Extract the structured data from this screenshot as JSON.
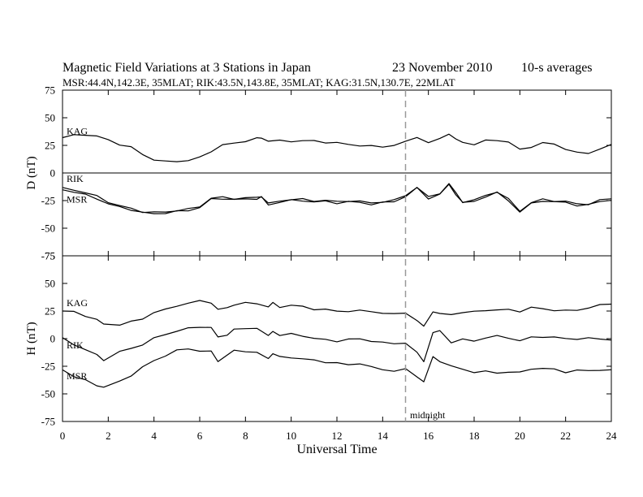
{
  "chart_data": {
    "type": "line",
    "title": "Magnetic Field Variations at 3 Stations in Japan",
    "date": "23 November 2010",
    "averaging": "10-s averages",
    "subtitle": "MSR:44.4N,142.3E, 35MLAT;  RIK:43.5N,143.8E, 35MLAT;  KAG:31.5N,130.7E, 22MLAT",
    "xlabel": "Universal Time",
    "xlim": [
      0,
      24
    ],
    "xticks": [
      "0",
      "2",
      "4",
      "6",
      "8",
      "10",
      "12",
      "14",
      "16",
      "18",
      "20",
      "22",
      "24"
    ],
    "annotation": {
      "text": "midnight",
      "x": 15
    },
    "grid": false,
    "panels": [
      {
        "ylabel": "D (nT)",
        "ylim": [
          -75,
          75
        ],
        "yticks": [
          "75",
          "50",
          "25",
          "0",
          "-25",
          "-50",
          "-75"
        ],
        "zero_line": true,
        "x": [
          0,
          0.5,
          1,
          1.5,
          2,
          2.5,
          3,
          3.5,
          4,
          4.5,
          5,
          5.5,
          6,
          6.5,
          7,
          7.5,
          8,
          8.5,
          8.7,
          9,
          9.5,
          10,
          10.5,
          11,
          11.5,
          12,
          12.5,
          13,
          13.5,
          14,
          14.5,
          15,
          15.5,
          16,
          16.5,
          16.9,
          17.2,
          17.5,
          18,
          18.5,
          19,
          19.5,
          20,
          20.5,
          21,
          21.5,
          22,
          22.5,
          23,
          23.5,
          24
        ],
        "series": [
          {
            "name": "KAG",
            "values": [
              32,
              34,
              35,
              33,
              30,
              26,
              23,
              17,
              12,
              10,
              11,
              11,
              14,
              20,
              25,
              27,
              29,
              31,
              32,
              29,
              29,
              29,
              29,
              29,
              28,
              27,
              26,
              25,
              24,
              24,
              25,
              28,
              33,
              27,
              31,
              36,
              30,
              28,
              26,
              29,
              30,
              28,
              21,
              24,
              27,
              26,
              22,
              18,
              18,
              22,
              25
            ]
          },
          {
            "name": "RIK",
            "values": [
              -14,
              -15,
              -18,
              -21,
              -26,
              -30,
              -32,
              -35,
              -36,
              -35,
              -34,
              -33,
              -30,
              -23,
              -22,
              -23,
              -23,
              -22,
              -21,
              -28,
              -25,
              -24,
              -24,
              -25,
              -25,
              -26,
              -25,
              -26,
              -27,
              -26,
              -25,
              -20,
              -13,
              -22,
              -18,
              -10,
              -18,
              -26,
              -25,
              -20,
              -17,
              -24,
              -34,
              -27,
              -24,
              -25,
              -26,
              -28,
              -28,
              -25,
              -23
            ]
          },
          {
            "name": "MSR",
            "values": [
              -15,
              -17,
              -20,
              -23,
              -28,
              -31,
              -33,
              -36,
              -37,
              -36,
              -35,
              -34,
              -31,
              -24,
              -23,
              -24,
              -24,
              -23,
              -22,
              -29,
              -26,
              -25,
              -25,
              -26,
              -26,
              -27,
              -26,
              -27,
              -28,
              -27,
              -26,
              -21,
              -14,
              -23,
              -19,
              -11,
              -19,
              -27,
              -26,
              -21,
              -18,
              -25,
              -35,
              -28,
              -25,
              -26,
              -27,
              -29,
              -29,
              -26,
              -24
            ]
          }
        ]
      },
      {
        "ylabel": "H (nT)",
        "ylim": [
          -75,
          75
        ],
        "yticks": [
          "75",
          "50",
          "25",
          "0",
          "-25",
          "-50",
          "-75"
        ],
        "zero_line": false,
        "x": [
          0,
          0.5,
          1,
          1.5,
          1.8,
          2.5,
          3,
          3.5,
          4,
          4.5,
          5,
          5.5,
          6,
          6.5,
          6.8,
          7.2,
          7.5,
          8,
          8.5,
          9,
          9.2,
          9.5,
          10,
          10.5,
          11,
          11.5,
          12,
          12.5,
          13,
          13.5,
          14,
          14.5,
          15,
          15.5,
          15.8,
          16.2,
          16.5,
          17,
          17.5,
          18,
          18.5,
          19,
          19.5,
          20,
          20.5,
          21,
          21.5,
          22,
          22.5,
          23,
          23.5,
          24
        ],
        "series": [
          {
            "name": "KAG",
            "values": [
              25,
              24,
              21,
              17,
              13,
              13,
              15,
              18,
              24,
              26,
              30,
              32,
              34,
              33,
              26,
              28,
              31,
              32,
              32,
              29,
              32,
              29,
              30,
              29,
              27,
              26,
              25,
              25,
              25,
              25,
              23,
              22,
              24,
              16,
              11,
              25,
              22,
              22,
              24,
              24,
              26,
              26,
              26,
              25,
              28,
              27,
              26,
              25,
              26,
              28,
              30,
              32
            ]
          },
          {
            "name": "RIK",
            "values": [
              0,
              -5,
              -10,
              -15,
              -19,
              -12,
              -9,
              -5,
              0,
              4,
              7,
              9,
              11,
              10,
              1,
              4,
              8,
              9,
              10,
              2,
              7,
              3,
              4,
              3,
              0,
              -1,
              -2,
              -1,
              0,
              -2,
              -4,
              -4,
              -4,
              -13,
              -20,
              5,
              7,
              -3,
              -1,
              -2,
              1,
              2,
              1,
              -2,
              1,
              2,
              1,
              0,
              0,
              0,
              0,
              -1
            ]
          },
          {
            "name": "MSR",
            "values": [
              -28,
              -34,
              -38,
              -42,
              -44,
              -39,
              -33,
              -26,
              -20,
              -15,
              -11,
              -9,
              -11,
              -12,
              -20,
              -15,
              -11,
              -11,
              -13,
              -18,
              -13,
              -17,
              -17,
              -18,
              -20,
              -21,
              -22,
              -24,
              -22,
              -26,
              -28,
              -29,
              -28,
              -34,
              -39,
              -17,
              -20,
              -25,
              -28,
              -30,
              -30,
              -31,
              -30,
              -31,
              -27,
              -27,
              -28,
              -30,
              -29,
              -29,
              -28,
              -29
            ]
          }
        ]
      }
    ]
  }
}
